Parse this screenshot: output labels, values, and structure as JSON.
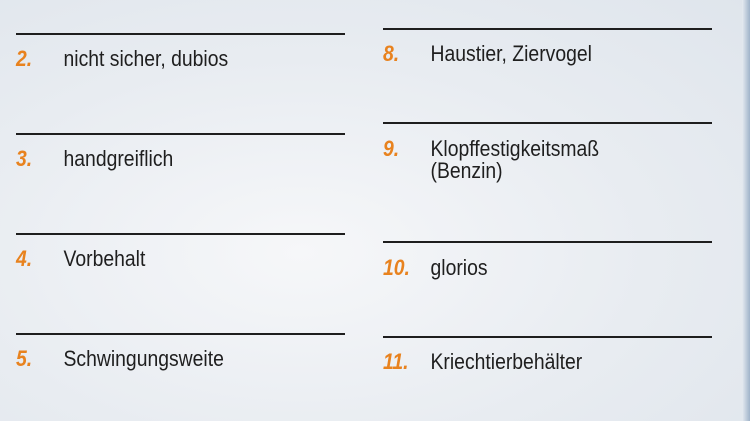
{
  "left_column": [
    {
      "number": "2.",
      "text": "nicht sicher, dubios"
    },
    {
      "number": "3.",
      "text": "handgreiflich"
    },
    {
      "number": "4.",
      "text": "Vorbehalt"
    },
    {
      "number": "5.",
      "text": "Schwingungsweite"
    }
  ],
  "right_column": [
    {
      "number": "8.",
      "text": "Haustier, Ziervogel"
    },
    {
      "number": "9.",
      "text": "Klopffestigkeitsmaß (Benzin)"
    },
    {
      "number": "10.",
      "text": "glorios"
    },
    {
      "number": "11.",
      "text": "Kriechtierbehälter"
    }
  ],
  "colors": {
    "number": "#e8821e",
    "text": "#1f1f1f"
  }
}
